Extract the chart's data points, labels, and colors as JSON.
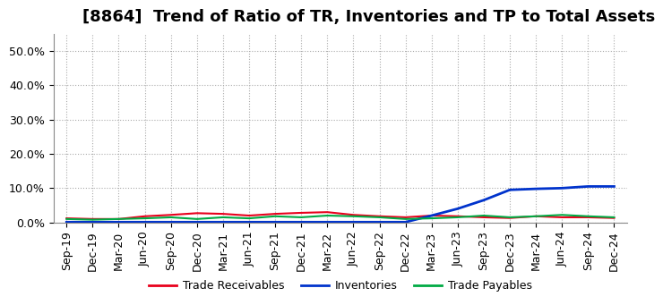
{
  "title": "[8864]  Trend of Ratio of TR, Inventories and TP to Total Assets",
  "x_labels": [
    "Sep-19",
    "Dec-19",
    "Mar-20",
    "Jun-20",
    "Sep-20",
    "Dec-20",
    "Mar-21",
    "Jun-21",
    "Sep-21",
    "Dec-21",
    "Mar-22",
    "Jun-22",
    "Sep-22",
    "Dec-22",
    "Mar-23",
    "Jun-23",
    "Sep-23",
    "Dec-23",
    "Mar-24",
    "Jun-24",
    "Sep-24",
    "Dec-24"
  ],
  "trade_receivables": [
    0.012,
    0.01,
    0.01,
    0.018,
    0.022,
    0.027,
    0.025,
    0.02,
    0.025,
    0.028,
    0.03,
    0.022,
    0.018,
    0.015,
    0.02,
    0.018,
    0.015,
    0.013,
    0.018,
    0.015,
    0.015,
    0.013
  ],
  "inventories": [
    0.001,
    0.001,
    0.001,
    0.001,
    0.001,
    0.001,
    0.001,
    0.001,
    0.001,
    0.001,
    0.001,
    0.001,
    0.001,
    0.001,
    0.02,
    0.04,
    0.065,
    0.095,
    0.098,
    0.1,
    0.105,
    0.105
  ],
  "trade_payables": [
    0.01,
    0.008,
    0.01,
    0.012,
    0.015,
    0.01,
    0.015,
    0.012,
    0.018,
    0.015,
    0.02,
    0.018,
    0.015,
    0.01,
    0.012,
    0.015,
    0.02,
    0.015,
    0.018,
    0.022,
    0.018,
    0.015
  ],
  "tr_color": "#e8001c",
  "inv_color": "#0033cc",
  "tp_color": "#00aa44",
  "ylim": [
    0.0,
    0.55
  ],
  "yticks": [
    0.0,
    0.1,
    0.2,
    0.3,
    0.4,
    0.5
  ],
  "ytick_labels": [
    "0.0%",
    "10.0%",
    "20.0%",
    "30.0%",
    "40.0%",
    "50.0%"
  ],
  "background_color": "#ffffff",
  "grid_color": "#aaaaaa",
  "legend_labels": [
    "Trade Receivables",
    "Inventories",
    "Trade Payables"
  ],
  "title_fontsize": 13,
  "label_fontsize": 9,
  "legend_fontsize": 9
}
